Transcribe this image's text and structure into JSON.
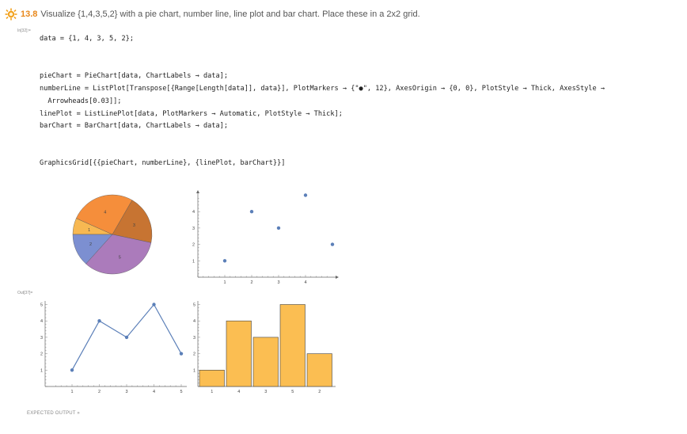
{
  "header": {
    "number": "13.8",
    "title": "Visualize {1,4,3,5,2} with a pie chart, number line, line plot and bar chart. Place these in a 2x2 grid.",
    "icon": "sun-badge-icon",
    "accent": "#e8871a"
  },
  "cells": {
    "in_label": "In[32]:=",
    "out_label": "Out[37]="
  },
  "code": {
    "line1": "data = {1, 4, 3, 5, 2};",
    "line2": "pieChart = PieChart[data, ChartLabels → data];",
    "line3": "numberLine = ListPlot[Transpose[{Range[Length[data]], data}], PlotMarkers → {\"●\", 12}, AxesOrigin → {0, 0}, PlotStyle → Thick, AxesStyle →",
    "line4": "  Arrowheads[0.03]];",
    "line5": "linePlot = ListLinePlot[data, PlotMarkers → Automatic, PlotStyle → Thick];",
    "line6": "barChart = BarChart[data, ChartLabels → data];",
    "line7": "GraphicsGrid[{{pieChart, numberLine}, {linePlot, barChart}}]"
  },
  "footer": "EXPECTED OUTPUT »",
  "chart_data": [
    {
      "type": "pie",
      "labels": [
        "1",
        "4",
        "3",
        "5",
        "2"
      ],
      "values": [
        1,
        4,
        3,
        5,
        2
      ],
      "colors": [
        "#f7b852",
        "#f58e3b",
        "#c77432",
        "#ab7bbb",
        "#7c8fd1"
      ]
    },
    {
      "type": "scatter",
      "x": [
        1,
        2,
        3,
        4,
        5
      ],
      "y": [
        1,
        4,
        3,
        5,
        2
      ],
      "xticks": [
        "1",
        "2",
        "3",
        "4"
      ],
      "yticks": [
        "1",
        "2",
        "3",
        "4"
      ],
      "xlim": [
        0,
        5
      ],
      "ylim": [
        0,
        5
      ],
      "color": "#5b7fb8"
    },
    {
      "type": "line",
      "x": [
        1,
        2,
        3,
        4,
        5
      ],
      "y": [
        1,
        4,
        3,
        5,
        2
      ],
      "xticks": [
        "1",
        "2",
        "3",
        "4",
        "5"
      ],
      "yticks": [
        "1",
        "2",
        "3",
        "4",
        "5"
      ],
      "xlim": [
        0.5,
        5
      ],
      "ylim": [
        0,
        5
      ],
      "color": "#5b7fb8"
    },
    {
      "type": "bar",
      "categories": [
        "1",
        "4",
        "3",
        "5",
        "2"
      ],
      "values": [
        1,
        4,
        3,
        5,
        2
      ],
      "yticks": [
        "1",
        "2",
        "3",
        "4",
        "5"
      ],
      "ylim": [
        0,
        5
      ],
      "color": "#fbbe52"
    }
  ]
}
